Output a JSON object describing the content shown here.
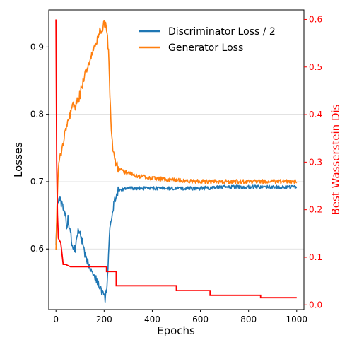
{
  "chart_data": {
    "type": "line",
    "xlabel": "Epochs",
    "ylabel_left": "Losses",
    "ylabel_right": "Best Wasserstein Dis",
    "xlim": [
      -30,
      1030
    ],
    "ylim_left": [
      0.51,
      0.955
    ],
    "ylim_right": [
      -0.01,
      0.62
    ],
    "x_ticks": [
      0,
      200,
      400,
      600,
      800,
      1000
    ],
    "x_tick_labels": [
      "0",
      "200",
      "400",
      "600",
      "800",
      "1000"
    ],
    "y_left_ticks": [
      0.6,
      0.7,
      0.8,
      0.9
    ],
    "y_left_tick_labels": [
      "0.6",
      "0.7",
      "0.8",
      "0.9"
    ],
    "y_right_ticks": [
      0.0,
      0.1,
      0.2,
      0.3,
      0.4,
      0.5,
      0.6
    ],
    "y_right_tick_labels": [
      "0.0",
      "0.1",
      "0.2",
      "0.3",
      "0.4",
      "0.5",
      "0.6"
    ],
    "grid": "horizontal",
    "legend_position": "top-right",
    "series": [
      {
        "name": "Discriminator Loss / 2",
        "axis": "left",
        "color": "#1f77b4",
        "x": [
          0,
          5,
          10,
          20,
          30,
          40,
          45,
          50,
          60,
          70,
          80,
          90,
          100,
          110,
          120,
          140,
          160,
          180,
          200,
          205,
          210,
          215,
          220,
          225,
          230,
          235,
          240,
          250,
          260,
          300,
          400,
          500,
          600,
          700,
          800,
          900,
          1000
        ],
        "y": [
          0.61,
          0.66,
          0.675,
          0.67,
          0.66,
          0.65,
          0.625,
          0.645,
          0.625,
          0.6,
          0.6,
          0.625,
          0.625,
          0.61,
          0.59,
          0.575,
          0.56,
          0.545,
          0.53,
          0.525,
          0.54,
          0.565,
          0.6,
          0.635,
          0.645,
          0.65,
          0.665,
          0.68,
          0.688,
          0.69,
          0.69,
          0.69,
          0.69,
          0.692,
          0.692,
          0.692,
          0.692
        ]
      },
      {
        "name": "Generator Loss",
        "axis": "left",
        "color": "#ff7f0e",
        "x": [
          0,
          5,
          10,
          20,
          30,
          40,
          50,
          60,
          70,
          80,
          90,
          100,
          120,
          140,
          160,
          180,
          200,
          210,
          220,
          225,
          230,
          240,
          250,
          260,
          280,
          300,
          350,
          400,
          500,
          600,
          700,
          800,
          900,
          1000
        ],
        "y": [
          0.605,
          0.67,
          0.72,
          0.74,
          0.76,
          0.78,
          0.79,
          0.8,
          0.815,
          0.81,
          0.82,
          0.83,
          0.86,
          0.88,
          0.9,
          0.92,
          0.935,
          0.93,
          0.88,
          0.82,
          0.77,
          0.74,
          0.725,
          0.72,
          0.715,
          0.712,
          0.708,
          0.705,
          0.702,
          0.7,
          0.7,
          0.7,
          0.7,
          0.7
        ]
      },
      {
        "name": "Best Wasserstein Dis",
        "axis": "right",
        "color": "#ff0000",
        "x": [
          0,
          3,
          6,
          10,
          20,
          30,
          40,
          60,
          100,
          150,
          210,
          210,
          240,
          250,
          250,
          300,
          400,
          500,
          500,
          600,
          640,
          640,
          700,
          800,
          850,
          850,
          900,
          1000
        ],
        "y": [
          0.6,
          0.3,
          0.19,
          0.14,
          0.13,
          0.085,
          0.085,
          0.08,
          0.08,
          0.08,
          0.08,
          0.07,
          0.07,
          0.07,
          0.04,
          0.04,
          0.04,
          0.04,
          0.03,
          0.03,
          0.03,
          0.02,
          0.02,
          0.02,
          0.02,
          0.015,
          0.015,
          0.015
        ]
      }
    ]
  }
}
